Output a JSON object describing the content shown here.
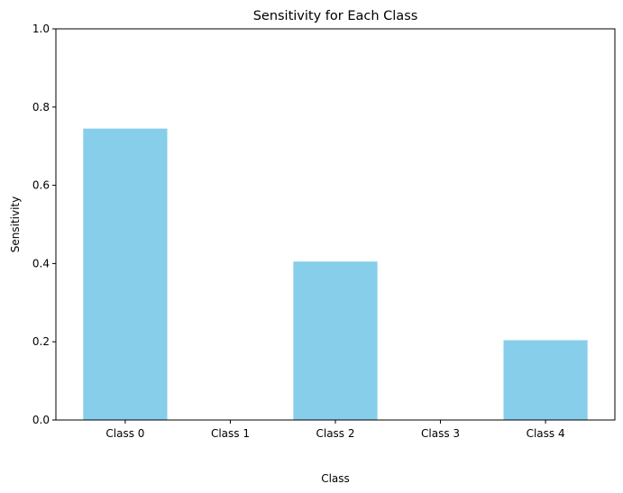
{
  "chart_data": {
    "type": "bar",
    "title": "Sensitivity for Each Class",
    "xlabel": "Class",
    "ylabel": "Sensitivity",
    "categories": [
      "Class 0",
      "Class 1",
      "Class 2",
      "Class 3",
      "Class 4"
    ],
    "values": [
      0.745,
      0.0,
      0.405,
      0.0,
      0.204
    ],
    "ylim": [
      0,
      1
    ],
    "yticks": [
      0.0,
      0.2,
      0.4,
      0.6,
      0.8,
      1.0
    ],
    "ytick_labels": [
      "0.0",
      "0.2",
      "0.4",
      "0.6",
      "0.8",
      "1.0"
    ],
    "grid": false,
    "bar_color": "#87CEEB"
  }
}
